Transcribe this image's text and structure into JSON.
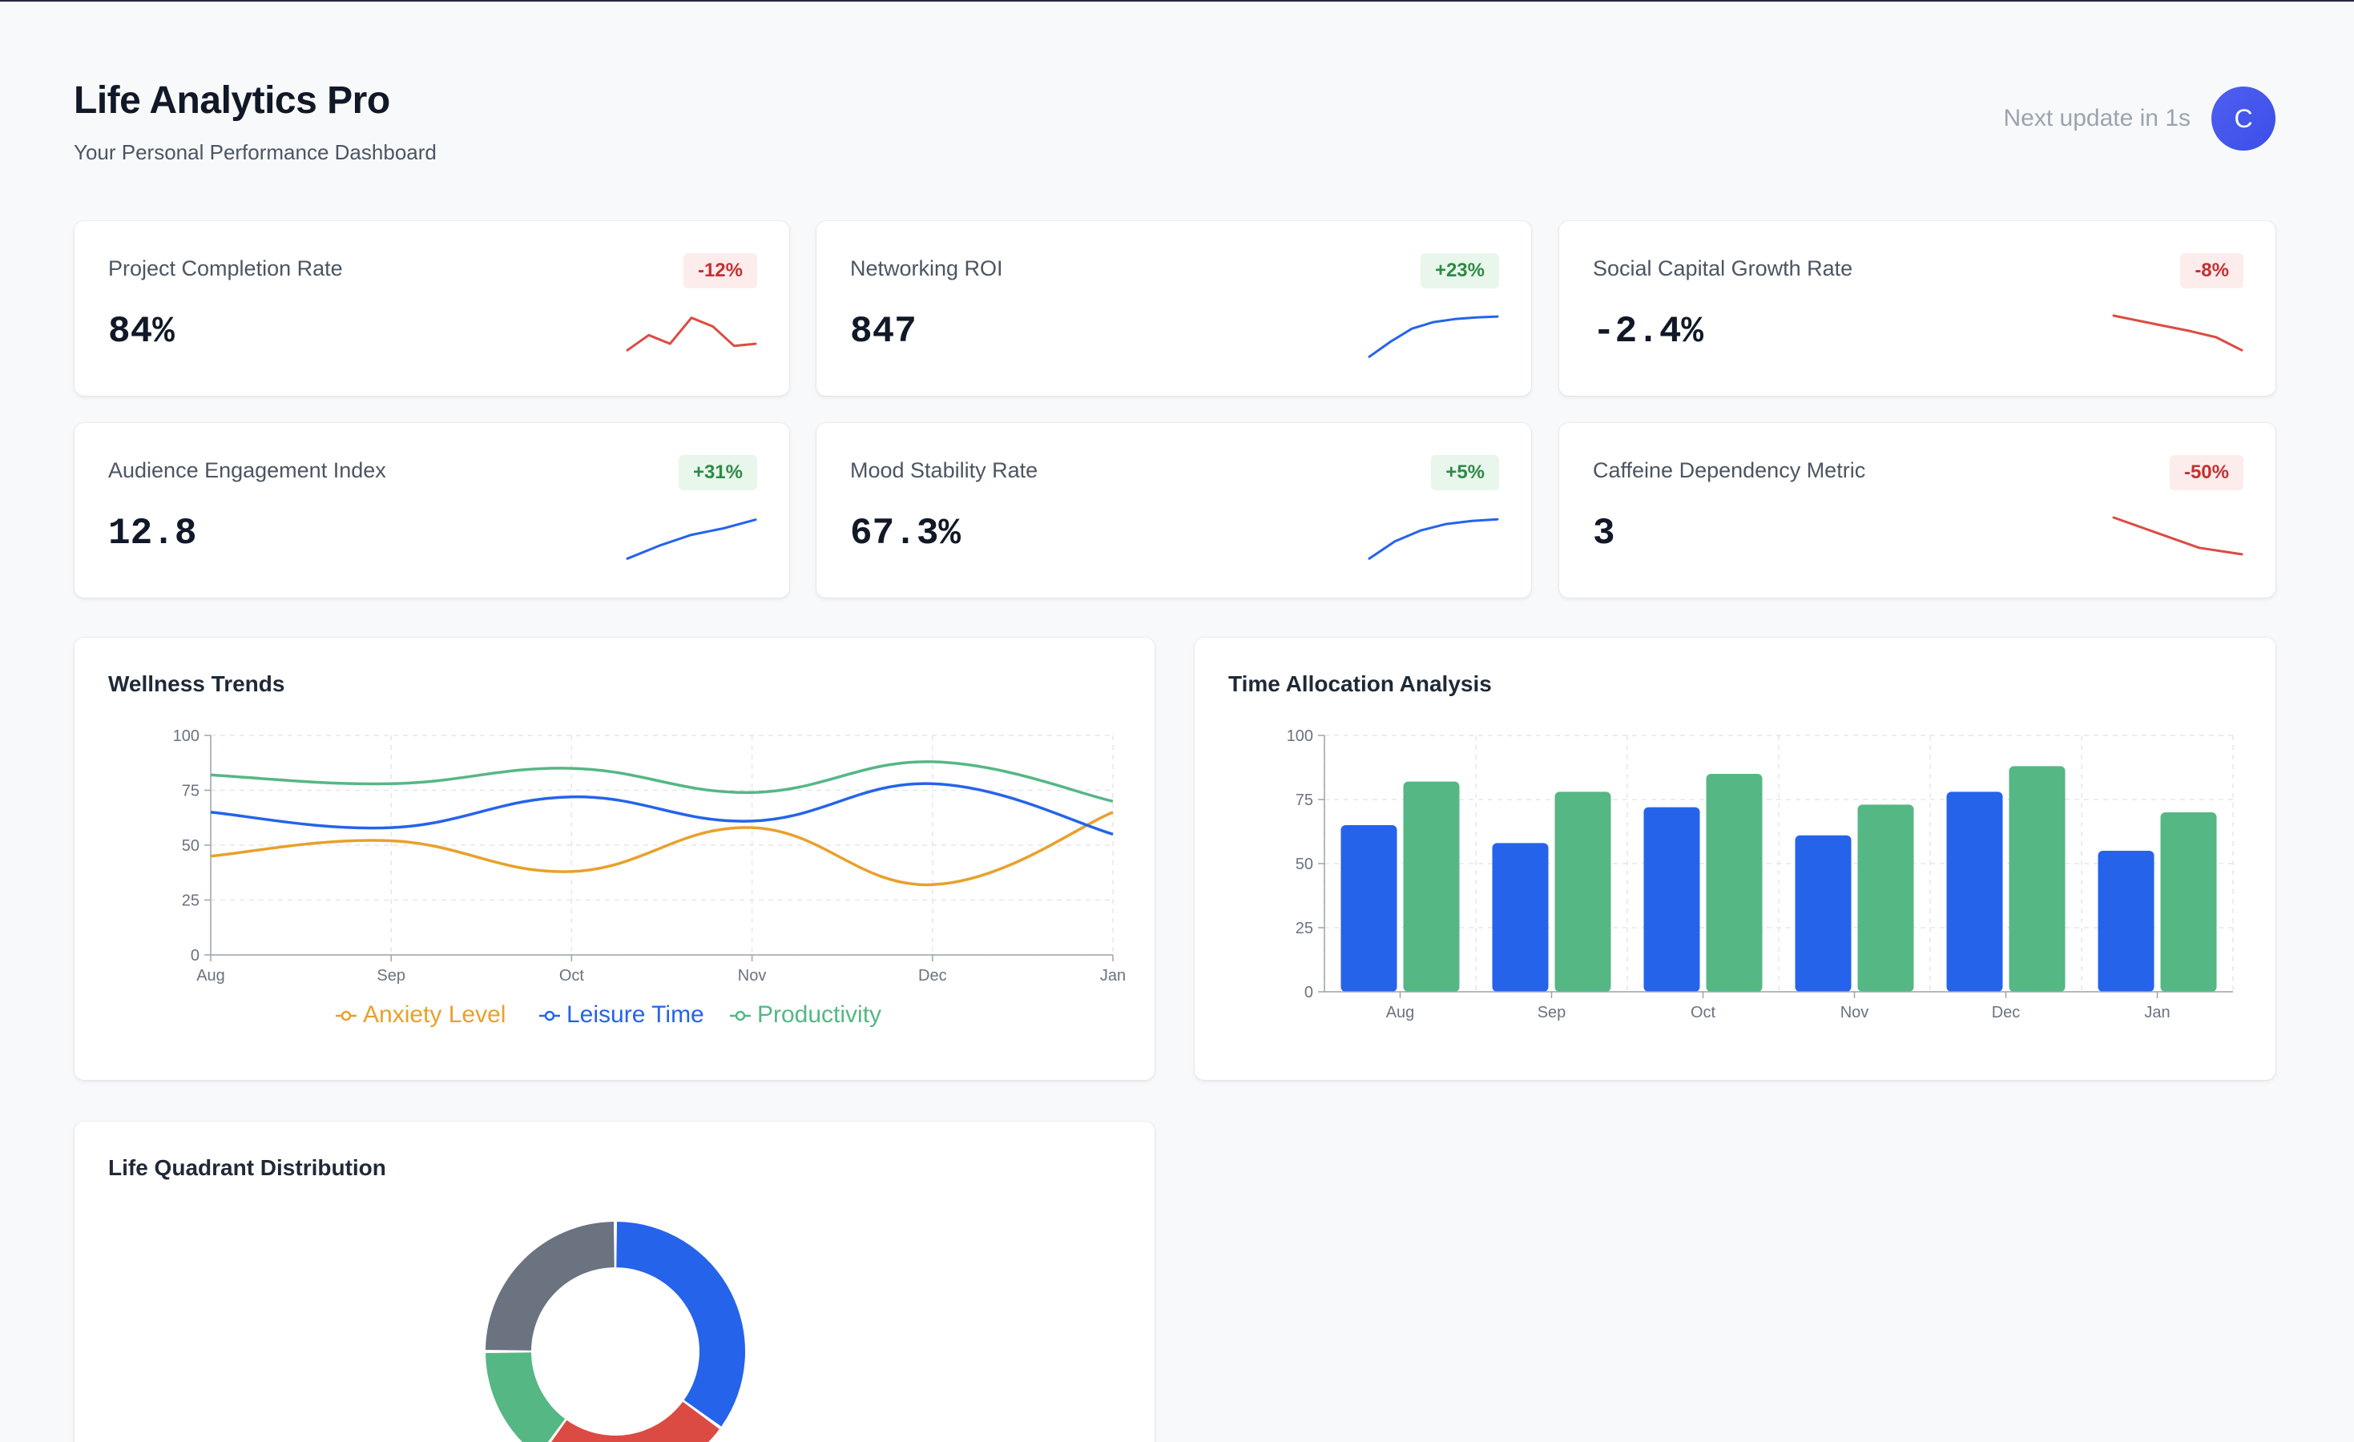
{
  "header": {
    "title": "Life Analytics Pro",
    "subtitle": "Your Personal Performance Dashboard",
    "next_update": "Next update in 1s",
    "avatar_letter": "C"
  },
  "colors": {
    "blue": "#2563eb",
    "green": "#55b784",
    "orange": "#e9a02b",
    "red": "#dc4b43",
    "gray": "#6b7280"
  },
  "metrics": [
    {
      "label": "Project Completion Rate",
      "value": "84%",
      "change": "-12%",
      "trend": "neg",
      "spark": [
        20,
        55,
        35,
        95,
        75,
        30,
        35
      ]
    },
    {
      "label": "Networking ROI",
      "value": "847",
      "change": "+23%",
      "trend": "pos",
      "spark": [
        5,
        40,
        70,
        85,
        92,
        96,
        98
      ]
    },
    {
      "label": "Social Capital Growth Rate",
      "value": "-2.4%",
      "change": "-8%",
      "trend": "neg",
      "spark": [
        100,
        88,
        76,
        64,
        50,
        20
      ]
    },
    {
      "label": "Audience Engagement Index",
      "value": "12.8",
      "change": "+31%",
      "trend": "pos",
      "spark": [
        5,
        35,
        60,
        75,
        95
      ]
    },
    {
      "label": "Mood Stability Rate",
      "value": "67.3%",
      "change": "+5%",
      "trend": "pos",
      "spark": [
        5,
        45,
        70,
        85,
        92,
        96
      ]
    },
    {
      "label": "Caffeine Dependency Metric",
      "value": "3",
      "change": "-50%",
      "trend": "neg",
      "spark": [
        100,
        65,
        30,
        15
      ]
    }
  ],
  "panels": {
    "wellness_title": "Wellness Trends",
    "time_title": "Time Allocation Analysis",
    "quadrant_title": "Life Quadrant Distribution"
  },
  "chart_data": [
    {
      "type": "line",
      "title": "Wellness Trends",
      "x": [
        "Aug",
        "Sep",
        "Oct",
        "Nov",
        "Dec",
        "Jan"
      ],
      "ylim": [
        0,
        100
      ],
      "yticks": [
        0,
        25,
        50,
        75,
        100
      ],
      "grid": true,
      "legend": "bottom",
      "series": [
        {
          "name": "Anxiety Level",
          "color": "#e9a02b",
          "values": [
            45,
            52,
            38,
            58,
            32,
            65
          ]
        },
        {
          "name": "Leisure Time",
          "color": "#2563eb",
          "values": [
            65,
            58,
            72,
            61,
            78,
            55
          ]
        },
        {
          "name": "Productivity",
          "color": "#55b784",
          "values": [
            82,
            78,
            85,
            74,
            88,
            70
          ]
        }
      ]
    },
    {
      "type": "bar",
      "title": "Time Allocation Analysis",
      "categories": [
        "Aug",
        "Sep",
        "Oct",
        "Nov",
        "Dec",
        "Jan"
      ],
      "ylim": [
        0,
        100
      ],
      "yticks": [
        0,
        25,
        50,
        75,
        100
      ],
      "grid": true,
      "series": [
        {
          "color": "#2563eb",
          "values": [
            65,
            58,
            72,
            61,
            78,
            55
          ]
        },
        {
          "color": "#55b784",
          "values": [
            82,
            78,
            85,
            73,
            88,
            70
          ]
        }
      ]
    },
    {
      "type": "pie",
      "title": "Life Quadrant Distribution",
      "donut": true,
      "slices": [
        {
          "color": "#2563eb",
          "value": 35
        },
        {
          "color": "#dc4b43",
          "value": 25
        },
        {
          "color": "#55b784",
          "value": 15
        },
        {
          "color": "#6b7280",
          "value": 25
        }
      ]
    }
  ]
}
